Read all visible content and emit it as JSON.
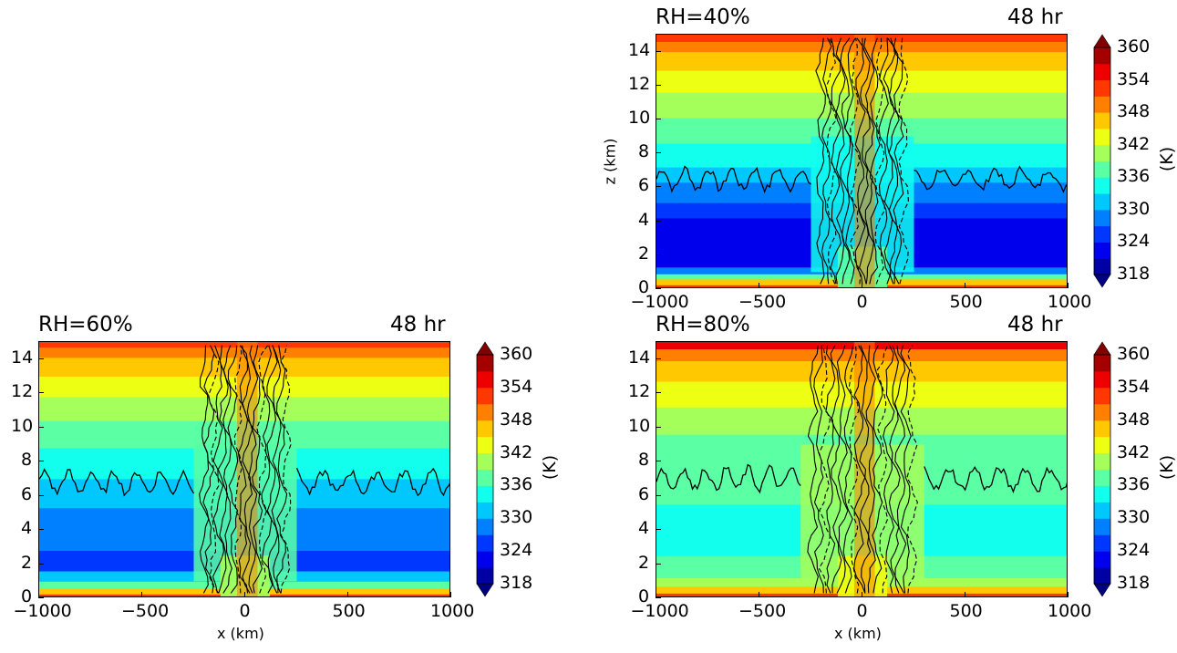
{
  "chart_data": [
    {
      "type": "heatmap",
      "panel": "top-right",
      "title_left": "RH=40%",
      "title_right": "48 hr",
      "xlabel": "",
      "ylabel": "z (km)",
      "x_ticks": [
        "−1000",
        "−500",
        "0",
        "500",
        "1000"
      ],
      "y_ticks": [
        "0",
        "2",
        "4",
        "6",
        "8",
        "10",
        "12",
        "14"
      ],
      "xlim": [
        -1000,
        1000
      ],
      "ylim": [
        0,
        15
      ],
      "colorbar": {
        "label": "(K)",
        "ticks": [
          "318",
          "324",
          "330",
          "336",
          "342",
          "348",
          "354",
          "360"
        ],
        "range": [
          318,
          360
        ],
        "extend": "both"
      },
      "environment_theta_levels": [
        {
          "z": [
            0,
            0.25
          ],
          "theta": 351
        },
        {
          "z": [
            0.25,
            0.6
          ],
          "theta": 345
        },
        {
          "z": [
            0.6,
            0.9
          ],
          "theta": 336
        },
        {
          "z": [
            0.9,
            1.3
          ],
          "theta": 327
        },
        {
          "z": [
            1.3,
            4.2
          ],
          "theta": 322
        },
        {
          "z": [
            4.2,
            5.1
          ],
          "theta": 325
        },
        {
          "z": [
            5.1,
            6.3
          ],
          "theta": 328
        },
        {
          "z": [
            6.3,
            7.2
          ],
          "theta": 331
        },
        {
          "z": [
            7.2,
            8.6
          ],
          "theta": 334
        },
        {
          "z": [
            8.6,
            10.1
          ],
          "theta": 337
        },
        {
          "z": [
            10.1,
            11.6
          ],
          "theta": 340
        },
        {
          "z": [
            11.6,
            12.9
          ],
          "theta": 343
        },
        {
          "z": [
            12.9,
            14.0
          ],
          "theta": 346
        },
        {
          "z": [
            14.0,
            14.6
          ],
          "theta": 349
        },
        {
          "z": [
            14.6,
            15
          ],
          "theta": 352
        }
      ],
      "core": {
        "x": [
          -250,
          250
        ],
        "theta_low": 336,
        "theta_mid": 333
      },
      "contour_line_z": 6.5
    },
    {
      "type": "heatmap",
      "panel": "bottom-left",
      "title_left": "RH=60%",
      "title_right": "48 hr",
      "xlabel": "x (km)",
      "ylabel": "",
      "x_ticks": [
        "−1000",
        "−500",
        "0",
        "500",
        "1000"
      ],
      "y_ticks": [
        "0",
        "2",
        "4",
        "6",
        "8",
        "10",
        "12",
        "14"
      ],
      "xlim": [
        -1000,
        1000
      ],
      "ylim": [
        0,
        15
      ],
      "colorbar": {
        "label": "(K)",
        "ticks": [
          "318",
          "324",
          "330",
          "336",
          "342",
          "348",
          "354",
          "360"
        ],
        "range": [
          318,
          360
        ],
        "extend": "both"
      },
      "environment_theta_levels": [
        {
          "z": [
            0,
            0.25
          ],
          "theta": 351
        },
        {
          "z": [
            0.25,
            0.6
          ],
          "theta": 345
        },
        {
          "z": [
            0.6,
            1.0
          ],
          "theta": 337
        },
        {
          "z": [
            1.0,
            1.6
          ],
          "theta": 331
        },
        {
          "z": [
            1.6,
            2.8
          ],
          "theta": 326
        },
        {
          "z": [
            2.8,
            5.3
          ],
          "theta": 329
        },
        {
          "z": [
            5.3,
            7.0
          ],
          "theta": 332
        },
        {
          "z": [
            7.0,
            8.8
          ],
          "theta": 335
        },
        {
          "z": [
            8.8,
            10.4
          ],
          "theta": 338
        },
        {
          "z": [
            10.4,
            11.8
          ],
          "theta": 341
        },
        {
          "z": [
            11.8,
            13.0
          ],
          "theta": 344
        },
        {
          "z": [
            13.0,
            14.1
          ],
          "theta": 347
        },
        {
          "z": [
            14.1,
            14.7
          ],
          "theta": 350
        },
        {
          "z": [
            14.7,
            15
          ],
          "theta": 353
        }
      ],
      "core": {
        "x": [
          -250,
          250
        ],
        "theta_low": 340,
        "theta_mid": 336
      },
      "contour_line_z": 6.8
    },
    {
      "type": "heatmap",
      "panel": "bottom-right",
      "title_left": "RH=80%",
      "title_right": "48 hr",
      "xlabel": "x (km)",
      "ylabel": "",
      "x_ticks": [
        "−1000",
        "−500",
        "0",
        "500",
        "1000"
      ],
      "y_ticks": [
        "0",
        "2",
        "4",
        "6",
        "8",
        "10",
        "12",
        "14"
      ],
      "xlim": [
        -1000,
        1000
      ],
      "ylim": [
        0,
        15
      ],
      "colorbar": {
        "label": "(K)",
        "ticks": [
          "318",
          "324",
          "330",
          "336",
          "342",
          "348",
          "354",
          "360"
        ],
        "range": [
          318,
          360
        ],
        "extend": "both"
      },
      "environment_theta_levels": [
        {
          "z": [
            0,
            0.3
          ],
          "theta": 352
        },
        {
          "z": [
            0.3,
            0.7
          ],
          "theta": 347
        },
        {
          "z": [
            0.7,
            1.2
          ],
          "theta": 341
        },
        {
          "z": [
            1.2,
            2.5
          ],
          "theta": 336
        },
        {
          "z": [
            2.5,
            5.5
          ],
          "theta": 334
        },
        {
          "z": [
            5.5,
            7.8
          ],
          "theta": 336
        },
        {
          "z": [
            7.8,
            9.6
          ],
          "theta": 338
        },
        {
          "z": [
            9.6,
            11.2
          ],
          "theta": 341
        },
        {
          "z": [
            11.2,
            12.7
          ],
          "theta": 344
        },
        {
          "z": [
            12.7,
            13.9
          ],
          "theta": 347
        },
        {
          "z": [
            13.9,
            14.6
          ],
          "theta": 350
        },
        {
          "z": [
            14.6,
            15
          ],
          "theta": 354
        }
      ],
      "core": {
        "x": [
          -300,
          300
        ],
        "theta_low": 344,
        "theta_mid": 340
      },
      "contour_line_z": 7.0
    }
  ]
}
